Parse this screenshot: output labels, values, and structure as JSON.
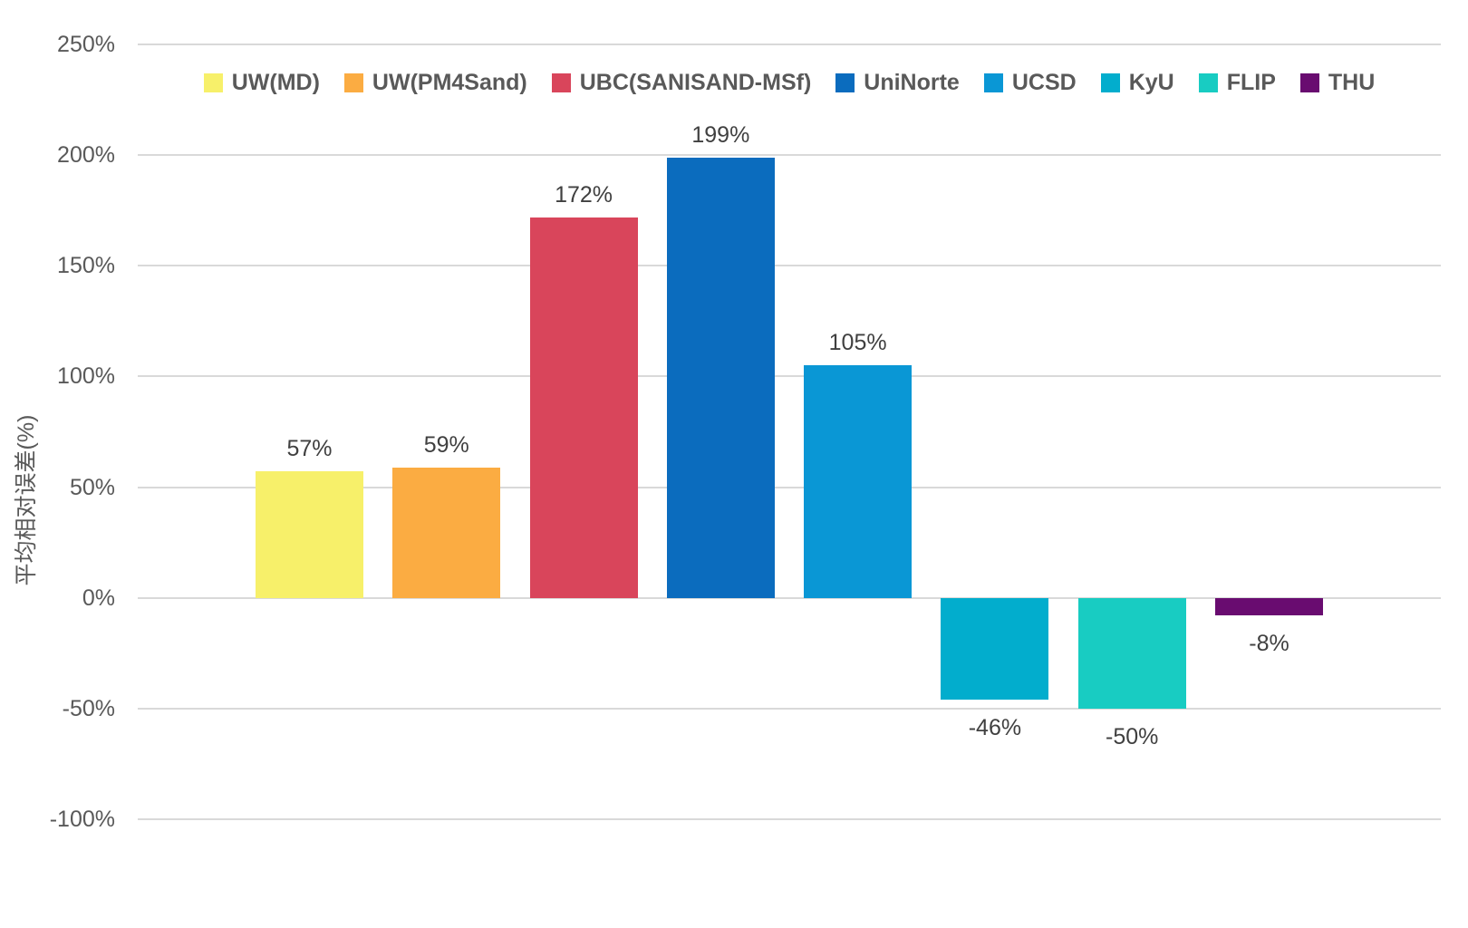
{
  "chart_data": {
    "type": "bar",
    "title": "",
    "xlabel": "",
    "ylabel": "平均相对误差(%)",
    "categories": [
      "UW(MD)",
      "UW(PM4Sand)",
      "UBC(SANISAND-MSf)",
      "UniNorte",
      "UCSD",
      "KyU",
      "FLIP",
      "THU"
    ],
    "values": [
      57,
      59,
      172,
      199,
      105,
      -46,
      -50,
      -8
    ],
    "bar_labels": [
      "57%",
      "59%",
      "172%",
      "199%",
      "105%",
      "-46%",
      "-50%",
      "-8%"
    ],
    "colors": [
      "#F7F06A",
      "#FBAC42",
      "#D9455B",
      "#0B6CBE",
      "#0A97D5",
      "#02ADCD",
      "#18CCC2",
      "#690C70"
    ],
    "ylim": [
      -100,
      250
    ],
    "ytick_step": 50,
    "ytick_labels": [
      "250%",
      "200%",
      "150%",
      "100%",
      "50%",
      "0%",
      "-50%",
      "-100%"
    ],
    "grid": true,
    "legend_position": "top-center",
    "style": {
      "grid_color": "#D9D9D9",
      "tick_text_color": "#595959",
      "legend_text_color": "#595959",
      "value_label_color": "#404040",
      "background": "#FFFFFF"
    }
  }
}
